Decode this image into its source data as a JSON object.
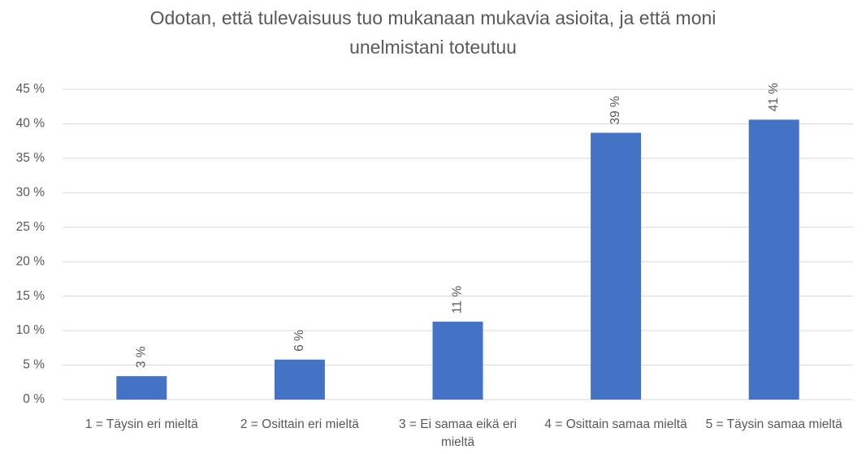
{
  "chart_data": {
    "type": "bar",
    "title": "Odotan, että tulevaisuus tuo mukanaan mukavia asioita, ja että moni unelmistani toteutuu",
    "categories": [
      "1 = Täysin eri mieltä",
      "2 = Osittain eri mieltä",
      "3 = Ei samaa eikä eri mieltä",
      "4 = Osittain samaa mieltä",
      "5 = Täysin samaa mieltä"
    ],
    "values": [
      3.4,
      5.8,
      11.3,
      38.7,
      40.6
    ],
    "value_labels": [
      "3 %",
      "6 %",
      "11 %",
      "39 %",
      "41 %"
    ],
    "color": "#4472c4",
    "ylim": [
      0,
      45
    ],
    "yticks": [
      {
        "value": 0,
        "label": "0 %"
      },
      {
        "value": 5,
        "label": "5 %"
      },
      {
        "value": 10,
        "label": "10 %"
      },
      {
        "value": 15,
        "label": "15 %"
      },
      {
        "value": 20,
        "label": "20 %"
      },
      {
        "value": 25,
        "label": "25 %"
      },
      {
        "value": 30,
        "label": "30 %"
      },
      {
        "value": 35,
        "label": "35 %"
      },
      {
        "value": 40,
        "label": "40 %"
      },
      {
        "value": 45,
        "label": "45 %"
      }
    ],
    "grid": true
  }
}
